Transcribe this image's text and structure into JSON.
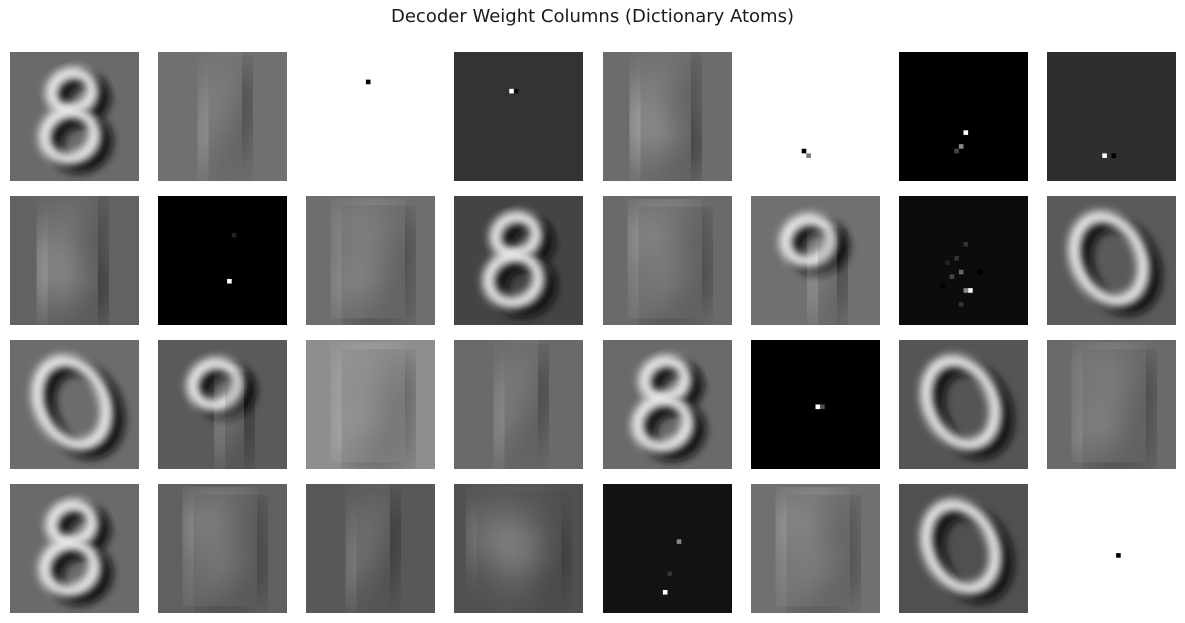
{
  "chart_data": {
    "type": "heatmap",
    "title": "Decoder Weight Columns (Dictionary Atoms)",
    "colormap": "gray",
    "axes_visible": false,
    "layout": {
      "rows": 4,
      "cols": 8
    },
    "atoms": [
      {
        "index": 0,
        "kind": "digit",
        "digit": "8",
        "background": "#6a6a6a"
      },
      {
        "index": 1,
        "kind": "digit",
        "digit": "1",
        "background": "#707070"
      },
      {
        "index": 2,
        "kind": "sparse",
        "background": "#ffffff",
        "pixels": [
          [
            13,
            6,
            "#000000"
          ]
        ]
      },
      {
        "index": 3,
        "kind": "sparse",
        "background": "#333333",
        "pixels": [
          [
            12,
            8,
            "#ffffff"
          ],
          [
            13,
            8,
            "#111111"
          ]
        ]
      },
      {
        "index": 4,
        "kind": "digit",
        "digit": "6",
        "background": "#6c6c6c"
      },
      {
        "index": 5,
        "kind": "sparse",
        "background": "#ffffff",
        "pixels": [
          [
            11,
            21,
            "#000000"
          ],
          [
            12,
            22,
            "#777777"
          ]
        ]
      },
      {
        "index": 6,
        "kind": "sparse",
        "background": "#000000",
        "pixels": [
          [
            14,
            17,
            "#ffffff"
          ],
          [
            13,
            20,
            "#888888"
          ],
          [
            12,
            21,
            "#444444"
          ]
        ]
      },
      {
        "index": 7,
        "kind": "sparse",
        "background": "#2e2e2e",
        "pixels": [
          [
            12,
            22,
            "#ffffff"
          ],
          [
            14,
            22,
            "#000000"
          ]
        ]
      },
      {
        "index": 8,
        "kind": "digit",
        "digit": "6",
        "background": "#626262"
      },
      {
        "index": 9,
        "kind": "sparse",
        "background": "#000000",
        "pixels": [
          [
            15,
            18,
            "#ffffff"
          ],
          [
            16,
            8,
            "#222222"
          ]
        ]
      },
      {
        "index": 10,
        "kind": "digit",
        "digit": "2",
        "background": "#6e6e6e"
      },
      {
        "index": 11,
        "kind": "digit",
        "digit": "8",
        "background": "#444444"
      },
      {
        "index": 12,
        "kind": "digit",
        "digit": "5",
        "background": "#6a6a6a"
      },
      {
        "index": 13,
        "kind": "digit",
        "digit": "9",
        "background": "#707070"
      },
      {
        "index": 14,
        "kind": "sparse",
        "background": "#0c0c0c",
        "pixels": [
          [
            15,
            20,
            "#ffffff"
          ],
          [
            14,
            20,
            "#888888"
          ],
          [
            13,
            16,
            "#666666"
          ],
          [
            9,
            19,
            "#000000"
          ],
          [
            11,
            17,
            "#444444"
          ],
          [
            17,
            16,
            "#000000"
          ],
          [
            12,
            13,
            "#333333"
          ],
          [
            14,
            10,
            "#333333"
          ],
          [
            10,
            14,
            "#222222"
          ],
          [
            13,
            23,
            "#333333"
          ]
        ]
      },
      {
        "index": 15,
        "kind": "digit",
        "digit": "0",
        "background": "#5a5a5a"
      },
      {
        "index": 16,
        "kind": "digit",
        "digit": "0",
        "background": "#6c6c6c"
      },
      {
        "index": 17,
        "kind": "digit",
        "digit": "9",
        "background": "#5a5a5a"
      },
      {
        "index": 18,
        "kind": "digit",
        "digit": "2",
        "background": "#8e8e8e"
      },
      {
        "index": 19,
        "kind": "digit",
        "digit": "1",
        "background": "#6a6a6a"
      },
      {
        "index": 20,
        "kind": "digit",
        "digit": "8",
        "background": "#6a6a6a"
      },
      {
        "index": 21,
        "kind": "sparse",
        "background": "#000000",
        "pixels": [
          [
            14,
            14,
            "#ffffff"
          ],
          [
            15,
            14,
            "#555555"
          ]
        ]
      },
      {
        "index": 22,
        "kind": "digit",
        "digit": "0",
        "background": "#555555"
      },
      {
        "index": 23,
        "kind": "digit",
        "digit": "2",
        "background": "#6a6a6a"
      },
      {
        "index": 24,
        "kind": "digit",
        "digit": "8",
        "background": "#6a6a6a"
      },
      {
        "index": 25,
        "kind": "digit",
        "digit": "5",
        "background": "#606060"
      },
      {
        "index": 26,
        "kind": "digit",
        "digit": "1",
        "background": "#585858"
      },
      {
        "index": 27,
        "kind": "digit",
        "digit": "4",
        "background": "#505050"
      },
      {
        "index": 28,
        "kind": "sparse",
        "background": "#121212",
        "pixels": [
          [
            16,
            12,
            "#888888"
          ],
          [
            14,
            19,
            "#333333"
          ],
          [
            13,
            23,
            "#ffffff"
          ]
        ]
      },
      {
        "index": 29,
        "kind": "digit",
        "digit": "5",
        "background": "#707070"
      },
      {
        "index": 30,
        "kind": "digit",
        "digit": "0",
        "background": "#505050"
      },
      {
        "index": 31,
        "kind": "sparse",
        "background": "#ffffff",
        "pixels": [
          [
            15,
            15,
            "#000000"
          ]
        ]
      }
    ]
  }
}
